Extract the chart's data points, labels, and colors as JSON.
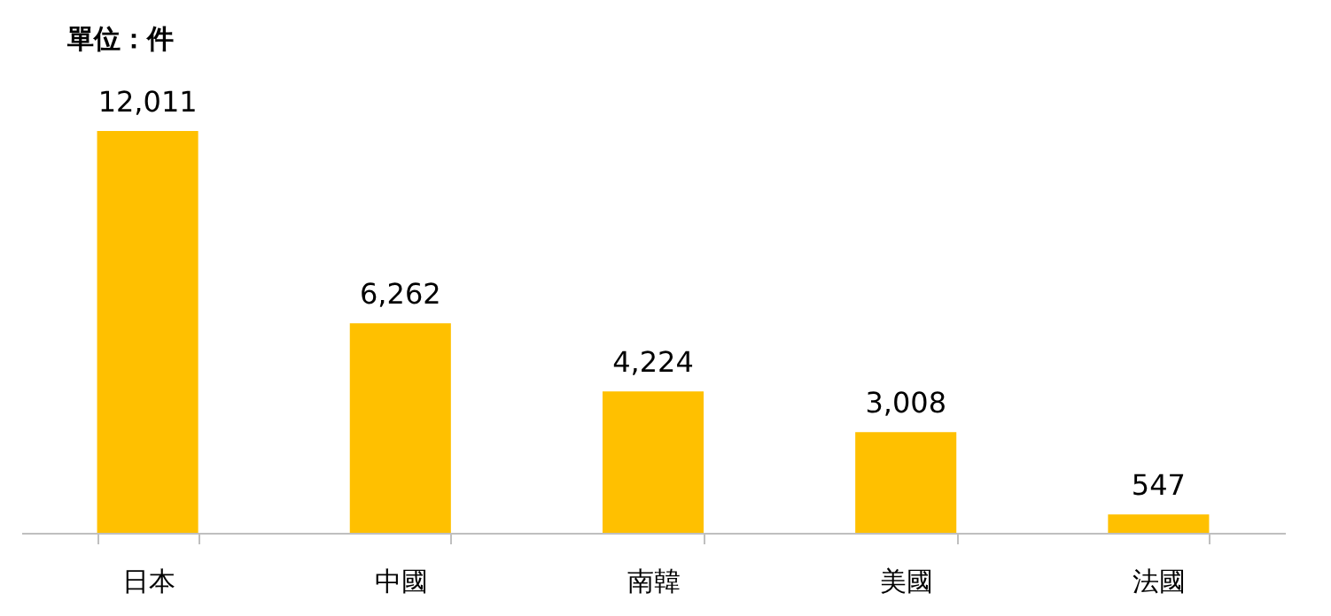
{
  "chart_data": {
    "type": "bar",
    "title": "單位：件",
    "categories": [
      "日本",
      "中國",
      "南韓",
      "美國",
      "法國"
    ],
    "values": [
      12011,
      6262,
      4224,
      3008,
      547
    ],
    "value_labels": [
      "12,011",
      "6,262",
      "4,224",
      "3,008",
      "547"
    ],
    "color": "#ffc000"
  }
}
